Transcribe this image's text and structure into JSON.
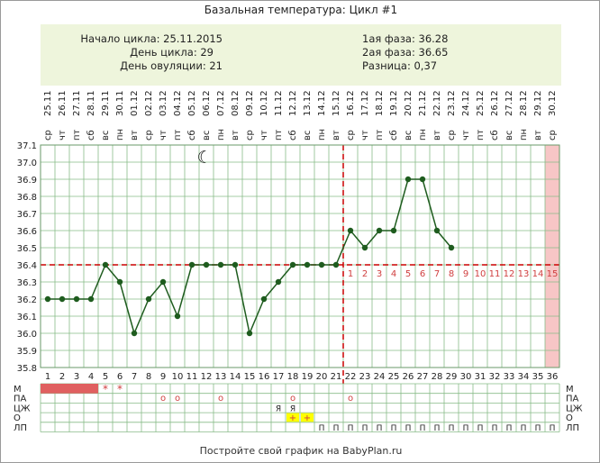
{
  "title": "Базальная температура: Цикл #1",
  "info": {
    "left": [
      "Начало цикла: 25.11.2015",
      "День цикла: 29",
      "День овуляции: 21"
    ],
    "right": [
      "1ая фаза: 36.28",
      "2ая фаза: 36.65",
      "Разница: 0,37"
    ]
  },
  "footer": "Постройте свой график на BabyPlan.ru",
  "colors": {
    "line": "#1e5c1e",
    "point": "#1e5c1e",
    "coverline": "#cc0000",
    "grid": "#88bb88",
    "highlight_column": "#f7c6c6",
    "menses_fill": "#e06060",
    "mark_red": "#d04040",
    "mark_yellow": "#ffff00"
  },
  "chart_data": {
    "type": "line",
    "weekdays": [
      "ср",
      "чт",
      "пт",
      "сб",
      "вс",
      "пн",
      "вт",
      "ср",
      "чт",
      "пт",
      "сб",
      "вс",
      "пн",
      "вт",
      "ср",
      "чт",
      "пт",
      "сб",
      "вс",
      "пн",
      "вт",
      "ср",
      "чт",
      "пт",
      "сб",
      "вс",
      "пн",
      "вт",
      "ср",
      "чт",
      "пт",
      "сб",
      "вс",
      "пн",
      "вт",
      "ср"
    ],
    "dates": [
      "25.11",
      "26.11",
      "27.11",
      "28.11",
      "29.11",
      "30.11",
      "01.12",
      "02.12",
      "03.12",
      "04.12",
      "05.12",
      "06.12",
      "07.12",
      "08.12",
      "09.12",
      "10.12",
      "11.12",
      "12.12",
      "13.12",
      "14.12",
      "15.12",
      "16.12",
      "17.12",
      "18.12",
      "19.12",
      "20.12",
      "21.12",
      "22.12",
      "23.12",
      "24.12",
      "25.12",
      "26.12",
      "27.12",
      "28.12",
      "29.12",
      "30.12"
    ],
    "days": [
      1,
      2,
      3,
      4,
      5,
      6,
      7,
      8,
      9,
      10,
      11,
      12,
      13,
      14,
      15,
      16,
      17,
      18,
      19,
      20,
      21,
      22,
      23,
      24,
      25,
      26,
      27,
      28,
      29,
      30,
      31,
      32,
      33,
      34,
      35,
      36
    ],
    "temperatures": [
      36.2,
      36.2,
      36.2,
      36.2,
      36.4,
      36.3,
      36.0,
      36.2,
      36.3,
      36.1,
      36.4,
      36.4,
      36.4,
      36.4,
      36.0,
      36.2,
      36.3,
      36.4,
      36.4,
      36.4,
      36.4,
      36.6,
      36.5,
      36.6,
      36.6,
      36.9,
      36.9,
      36.6,
      36.5
    ],
    "y_ticks": [
      "37.1",
      "37.0",
      "36.9",
      "36.8",
      "36.7",
      "36.6",
      "36.5",
      "36.4",
      "36.3",
      "36.2",
      "36.1",
      "36.0",
      "35.9",
      "35.8"
    ],
    "ylim": [
      35.8,
      37.1
    ],
    "coverline": 36.4,
    "ovulation_day": 21,
    "luteal_days": [
      "1",
      "2",
      "3",
      "4",
      "5",
      "6",
      "7",
      "8",
      "9",
      "10",
      "11",
      "12",
      "13",
      "14",
      "15"
    ],
    "highlight_day": 36,
    "moon_day": 12,
    "moon_symbol": "☾",
    "rows": {
      "labels": [
        "М",
        "ПА",
        "ЦЖ",
        "О",
        "ЛП"
      ],
      "menses_days": [
        1,
        2,
        3,
        4
      ],
      "menses_star_days": [
        5,
        6
      ],
      "star_symbol": "*",
      "pa_days": [
        9,
        10,
        13,
        18,
        22
      ],
      "pa_symbol": "о",
      "cj_days": [
        17,
        18
      ],
      "cj_symbol": "Я",
      "o_days": [
        18,
        19
      ],
      "o_symbol": "+",
      "lp_days": [
        20,
        21,
        22,
        23,
        24,
        25,
        26,
        27,
        28,
        29,
        30,
        31,
        32,
        33,
        34,
        35,
        36
      ],
      "lp_symbol": "П"
    },
    "grid": true
  }
}
